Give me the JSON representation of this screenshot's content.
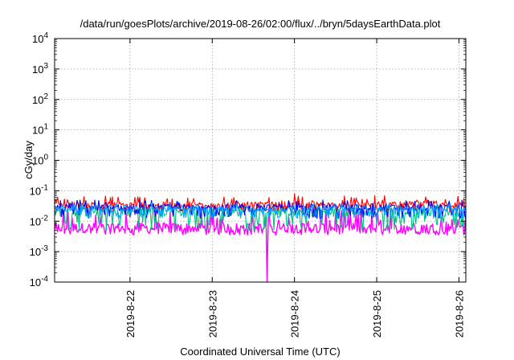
{
  "chart_data": {
    "type": "line",
    "title": "/data/run/goesPlots/archive/2019-08-26/02:00/flux/../bryn/5daysEarthData.plot",
    "xlabel": "Coordinated Universal Time (UTC)",
    "ylabel": "cGy/day",
    "yscale": "log",
    "ylim": [
      0.0001,
      10000
    ],
    "y_ticks": [
      {
        "value": 0.0001,
        "base": "10",
        "exp": "-4"
      },
      {
        "value": 0.001,
        "base": "10",
        "exp": "-3"
      },
      {
        "value": 0.01,
        "base": "10",
        "exp": "-2"
      },
      {
        "value": 0.1,
        "base": "10",
        "exp": "-1"
      },
      {
        "value": 1,
        "base": "10",
        "exp": "0"
      },
      {
        "value": 10,
        "base": "10",
        "exp": "1"
      },
      {
        "value": 100,
        "base": "10",
        "exp": "2"
      },
      {
        "value": 1000,
        "base": "10",
        "exp": "3"
      },
      {
        "value": 10000,
        "base": "10",
        "exp": "4"
      }
    ],
    "x_range_days": [
      "2019-08-21T02:00",
      "2019-08-26T02:00"
    ],
    "x_ticks": [
      {
        "value": "2019-08-22T00:00",
        "label": "2019-8-22"
      },
      {
        "value": "2019-08-23T00:00",
        "label": "2019-8-23"
      },
      {
        "value": "2019-08-24T00:00",
        "label": "2019-8-24"
      },
      {
        "value": "2019-08-25T00:00",
        "label": "2019-8-25"
      },
      {
        "value": "2019-08-26T00:00",
        "label": "2019-8-26"
      }
    ],
    "grid": true,
    "legend": "none",
    "series": [
      {
        "color": "#ff00ff",
        "typical": 0.006,
        "low": 0.0035,
        "high": 0.03,
        "dropout": {
          "time": "2019-08-23T16:00",
          "value": 0.0001
        }
      },
      {
        "color": "#00c080",
        "typical": 0.02,
        "low": 0.005,
        "high": 0.035
      },
      {
        "color": "#ff0000",
        "typical": 0.035,
        "low": 0.02,
        "high": 0.07,
        "spike": {
          "time": "2019-08-24T00:00",
          "value": 0.08
        }
      },
      {
        "color": "#0000ff",
        "typical": 0.028,
        "low": 0.012,
        "high": 0.05
      },
      {
        "color": "#00a0ff",
        "typical": 0.025,
        "low": 0.012,
        "high": 0.04
      }
    ]
  }
}
